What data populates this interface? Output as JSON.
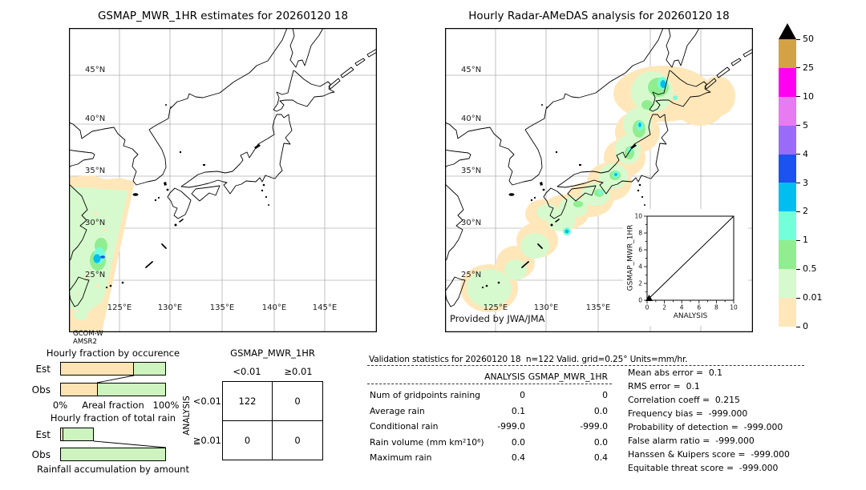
{
  "left_map": {
    "title": "GSMAP_MWR_1HR estimates for 20260120 18",
    "source": [
      "GCOM-W",
      "AMSR2"
    ]
  },
  "right_map": {
    "title": "Hourly Radar-AMeDAS analysis for 20260120 18",
    "credit": "Provided by JWA/JMA"
  },
  "map_labels": {
    "lats": [
      "45°N",
      "40°N",
      "35°N",
      "30°N",
      "25°N"
    ],
    "lons": [
      "125°E",
      "130°E",
      "135°E",
      "140°E",
      "145°E"
    ]
  },
  "colorbar": {
    "units": "mm/hr",
    "labels": [
      "50",
      "25",
      "10",
      "5",
      "4",
      "3",
      "2",
      "1",
      "0.5",
      "0.01",
      "0"
    ],
    "colors": [
      "#D2A244",
      "#FF00F2",
      "#E87AF2",
      "#9A6BF8",
      "#1B52F0",
      "#00BEF0",
      "#73FFD9",
      "#90EE90",
      "#D6FACD",
      "#FFE7BA"
    ],
    "overflow_color": "#000000"
  },
  "inset": {
    "xlabel": "ANALYSIS",
    "ylabel": "GSMAP_MWR_1HR",
    "xticks": [
      "0",
      "2",
      "4",
      "6",
      "8",
      "10"
    ],
    "yticks": [
      "0",
      "2",
      "4",
      "6",
      "8",
      "10"
    ]
  },
  "occurrence_chart": {
    "title": "Hourly fraction by occurence",
    "colors": {
      "orange": "#FFE4B3",
      "green": "#CDF3BF"
    },
    "rows": [
      {
        "label": "Est",
        "orange_pct": 70,
        "green_pct": 30
      },
      {
        "label": "Obs",
        "orange_pct": 35,
        "green_pct": 65
      }
    ],
    "axis": {
      "left": "0%",
      "center": "Areal fraction",
      "right": "100%"
    }
  },
  "totalrain_chart": {
    "title": "Hourly fraction of total rain",
    "rows": [
      {
        "label": "Est",
        "orange_pct": 2,
        "green_pct": 30
      },
      {
        "label": "Obs",
        "orange_pct": 0,
        "green_pct": 100
      }
    ],
    "caption": "Rainfall accumulation by amount"
  },
  "contingency": {
    "col_group": "GSMAP_MWR_1HR",
    "col_labels": [
      "<0.01",
      "≥0.01"
    ],
    "row_group": "ANALYSIS",
    "row_labels": [
      "<0.01",
      "≧0.01"
    ],
    "cells": [
      [
        "122",
        "0"
      ],
      [
        "0",
        "0"
      ]
    ]
  },
  "validation": {
    "header": "Validation statistics for 20260120 18  n=122 Valid. grid=0.25° Units=mm/hr.",
    "columns": [
      "ANALYSIS",
      "GSMAP_MWR_1HR"
    ],
    "rows": [
      {
        "label": "Num of gridpoints raining",
        "analysis": "0",
        "gsmap": "0"
      },
      {
        "label": "Average rain",
        "analysis": "0.1",
        "gsmap": "0.0"
      },
      {
        "label": "Conditional rain",
        "analysis": "-999.0",
        "gsmap": "-999.0"
      },
      {
        "label": "Rain volume (mm km²10⁶)",
        "analysis": "0.0",
        "gsmap": "0.0"
      },
      {
        "label": "Maximum rain",
        "analysis": "0.4",
        "gsmap": "0.4"
      }
    ],
    "scores": [
      {
        "label": "Mean abs error",
        "value": "0.1"
      },
      {
        "label": "RMS error",
        "value": "0.1"
      },
      {
        "label": "Correlation coeff",
        "value": "0.215"
      },
      {
        "label": "Frequency bias",
        "value": "-999.000"
      },
      {
        "label": "Probability of detection",
        "value": "-999.000"
      },
      {
        "label": "False alarm ratio",
        "value": "-999.000"
      },
      {
        "label": "Hanssen & Kuipers score",
        "value": "-999.000"
      },
      {
        "label": "Equitable threat score",
        "value": "-999.000"
      }
    ]
  },
  "chart_data": [
    {
      "type": "heatmap",
      "title": "GSMAP_MWR_1HR estimates for 20260120 18",
      "region": {
        "lon_range": [
          120,
          150
        ],
        "lat_range": [
          20,
          49.6
        ]
      },
      "units": "mm/hr",
      "levels": [
        0,
        0.01,
        0.5,
        1,
        2,
        3,
        4,
        5,
        10,
        25,
        50
      ],
      "level_colors": [
        "#FFE7BA",
        "#D6FACD",
        "#90EE90",
        "#73FFD9",
        "#00BEF0",
        "#1B52F0",
        "#9A6BF8",
        "#E87AF2",
        "#FF00F2",
        "#D2A244"
      ],
      "description": "AMSR2 satellite swath over the East China Sea southwest of Japan; mostly 0–0.5 mm/hr with a small cell near 26N 122E reaching ~2–3 mm/hr"
    },
    {
      "type": "heatmap",
      "title": "Hourly Radar-AMeDAS analysis for 20260120 18",
      "region": {
        "lon_range": [
          120,
          150
        ],
        "lat_range": [
          20,
          49.6
        ]
      },
      "units": "mm/hr",
      "levels": [
        0,
        0.01,
        0.5,
        1,
        2,
        3,
        4,
        5,
        10,
        25,
        50
      ],
      "description": "Light precipitation 0–1 mm/hr along the Japanese archipelago from the Ryukyu islands to Hokkaido with isolated cells of ~1–3 mm/hr"
    },
    {
      "type": "bar",
      "title": "Hourly fraction by occurence",
      "categories": [
        "Est",
        "Obs"
      ],
      "series": [
        {
          "name": "no-rain fraction (orange)",
          "values": [
            70,
            35
          ]
        },
        {
          "name": "rain fraction (green)",
          "values": [
            30,
            65
          ]
        }
      ],
      "xlabel": "Areal fraction",
      "xlim": [
        "0%",
        "100%"
      ]
    },
    {
      "type": "bar",
      "title": "Hourly fraction of total rain",
      "categories": [
        "Est",
        "Obs"
      ],
      "series": [
        {
          "name": "orange",
          "values": [
            2,
            0
          ]
        },
        {
          "name": "green",
          "values": [
            30,
            100
          ]
        }
      ],
      "caption": "Rainfall accumulation by amount"
    },
    {
      "type": "table",
      "title": "Contingency table",
      "col_group": "GSMAP_MWR_1HR",
      "row_group": "ANALYSIS",
      "cols": [
        "<0.01",
        "≥0.01"
      ],
      "rows": [
        "<0.01",
        "≧0.01"
      ],
      "values": [
        [
          122,
          0
        ],
        [
          0,
          0
        ]
      ]
    },
    {
      "type": "scatter",
      "xlabel": "ANALYSIS",
      "ylabel": "GSMAP_MWR_1HR",
      "xlim": [
        0,
        10
      ],
      "ylim": [
        0,
        10
      ],
      "diagonal": true,
      "points": [
        [
          0.4,
          0.4
        ]
      ]
    }
  ]
}
